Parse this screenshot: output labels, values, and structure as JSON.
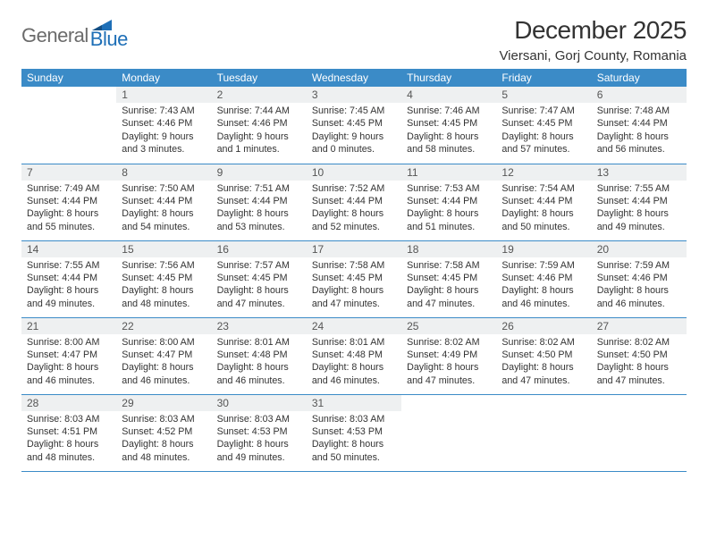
{
  "logo": {
    "general": "General",
    "blue": "Blue"
  },
  "title": "December 2025",
  "location": "Viersani, Gorj County, Romania",
  "colors": {
    "header_bg": "#3b8bc7",
    "header_text": "#ffffff",
    "daynum_bg": "#eef0f1",
    "rule": "#3b8bc7",
    "logo_gray": "#6b6b6b",
    "logo_blue": "#1e6fb7"
  },
  "weekdays": [
    "Sunday",
    "Monday",
    "Tuesday",
    "Wednesday",
    "Thursday",
    "Friday",
    "Saturday"
  ],
  "weeks": [
    [
      {
        "n": "",
        "sunrise": "",
        "sunset": "",
        "daylight": ""
      },
      {
        "n": "1",
        "sunrise": "7:43 AM",
        "sunset": "4:46 PM",
        "daylight": "9 hours and 3 minutes."
      },
      {
        "n": "2",
        "sunrise": "7:44 AM",
        "sunset": "4:46 PM",
        "daylight": "9 hours and 1 minutes."
      },
      {
        "n": "3",
        "sunrise": "7:45 AM",
        "sunset": "4:45 PM",
        "daylight": "9 hours and 0 minutes."
      },
      {
        "n": "4",
        "sunrise": "7:46 AM",
        "sunset": "4:45 PM",
        "daylight": "8 hours and 58 minutes."
      },
      {
        "n": "5",
        "sunrise": "7:47 AM",
        "sunset": "4:45 PM",
        "daylight": "8 hours and 57 minutes."
      },
      {
        "n": "6",
        "sunrise": "7:48 AM",
        "sunset": "4:44 PM",
        "daylight": "8 hours and 56 minutes."
      }
    ],
    [
      {
        "n": "7",
        "sunrise": "7:49 AM",
        "sunset": "4:44 PM",
        "daylight": "8 hours and 55 minutes."
      },
      {
        "n": "8",
        "sunrise": "7:50 AM",
        "sunset": "4:44 PM",
        "daylight": "8 hours and 54 minutes."
      },
      {
        "n": "9",
        "sunrise": "7:51 AM",
        "sunset": "4:44 PM",
        "daylight": "8 hours and 53 minutes."
      },
      {
        "n": "10",
        "sunrise": "7:52 AM",
        "sunset": "4:44 PM",
        "daylight": "8 hours and 52 minutes."
      },
      {
        "n": "11",
        "sunrise": "7:53 AM",
        "sunset": "4:44 PM",
        "daylight": "8 hours and 51 minutes."
      },
      {
        "n": "12",
        "sunrise": "7:54 AM",
        "sunset": "4:44 PM",
        "daylight": "8 hours and 50 minutes."
      },
      {
        "n": "13",
        "sunrise": "7:55 AM",
        "sunset": "4:44 PM",
        "daylight": "8 hours and 49 minutes."
      }
    ],
    [
      {
        "n": "14",
        "sunrise": "7:55 AM",
        "sunset": "4:44 PM",
        "daylight": "8 hours and 49 minutes."
      },
      {
        "n": "15",
        "sunrise": "7:56 AM",
        "sunset": "4:45 PM",
        "daylight": "8 hours and 48 minutes."
      },
      {
        "n": "16",
        "sunrise": "7:57 AM",
        "sunset": "4:45 PM",
        "daylight": "8 hours and 47 minutes."
      },
      {
        "n": "17",
        "sunrise": "7:58 AM",
        "sunset": "4:45 PM",
        "daylight": "8 hours and 47 minutes."
      },
      {
        "n": "18",
        "sunrise": "7:58 AM",
        "sunset": "4:45 PM",
        "daylight": "8 hours and 47 minutes."
      },
      {
        "n": "19",
        "sunrise": "7:59 AM",
        "sunset": "4:46 PM",
        "daylight": "8 hours and 46 minutes."
      },
      {
        "n": "20",
        "sunrise": "7:59 AM",
        "sunset": "4:46 PM",
        "daylight": "8 hours and 46 minutes."
      }
    ],
    [
      {
        "n": "21",
        "sunrise": "8:00 AM",
        "sunset": "4:47 PM",
        "daylight": "8 hours and 46 minutes."
      },
      {
        "n": "22",
        "sunrise": "8:00 AM",
        "sunset": "4:47 PM",
        "daylight": "8 hours and 46 minutes."
      },
      {
        "n": "23",
        "sunrise": "8:01 AM",
        "sunset": "4:48 PM",
        "daylight": "8 hours and 46 minutes."
      },
      {
        "n": "24",
        "sunrise": "8:01 AM",
        "sunset": "4:48 PM",
        "daylight": "8 hours and 46 minutes."
      },
      {
        "n": "25",
        "sunrise": "8:02 AM",
        "sunset": "4:49 PM",
        "daylight": "8 hours and 47 minutes."
      },
      {
        "n": "26",
        "sunrise": "8:02 AM",
        "sunset": "4:50 PM",
        "daylight": "8 hours and 47 minutes."
      },
      {
        "n": "27",
        "sunrise": "8:02 AM",
        "sunset": "4:50 PM",
        "daylight": "8 hours and 47 minutes."
      }
    ],
    [
      {
        "n": "28",
        "sunrise": "8:03 AM",
        "sunset": "4:51 PM",
        "daylight": "8 hours and 48 minutes."
      },
      {
        "n": "29",
        "sunrise": "8:03 AM",
        "sunset": "4:52 PM",
        "daylight": "8 hours and 48 minutes."
      },
      {
        "n": "30",
        "sunrise": "8:03 AM",
        "sunset": "4:53 PM",
        "daylight": "8 hours and 49 minutes."
      },
      {
        "n": "31",
        "sunrise": "8:03 AM",
        "sunset": "4:53 PM",
        "daylight": "8 hours and 50 minutes."
      },
      {
        "n": "",
        "sunrise": "",
        "sunset": "",
        "daylight": ""
      },
      {
        "n": "",
        "sunrise": "",
        "sunset": "",
        "daylight": ""
      },
      {
        "n": "",
        "sunrise": "",
        "sunset": "",
        "daylight": ""
      }
    ]
  ]
}
